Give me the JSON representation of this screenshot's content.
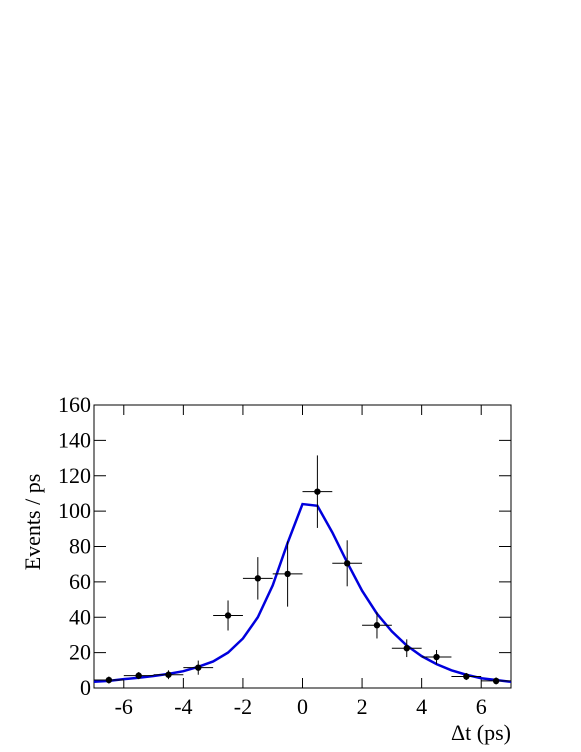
{
  "chart_data": {
    "type": "errorbar",
    "xlabel": "Δt (ps)",
    "ylabel": "Events / ps",
    "xlim": [
      -7,
      7
    ],
    "xticks": [
      -6,
      -4,
      -2,
      0,
      2,
      4,
      6
    ],
    "ylim": [
      0,
      160
    ],
    "yticks": [
      0,
      20,
      40,
      60,
      80,
      100,
      120,
      140,
      160
    ],
    "points": {
      "color": "#000000",
      "x": [
        -6.5,
        -5.5,
        -4.5,
        -3.5,
        -2.5,
        -1.5,
        -0.5,
        0.5,
        1.5,
        2.5,
        3.5,
        4.5,
        5.5,
        6.5
      ],
      "values": [
        4.5,
        7,
        7.5,
        11.5,
        41,
        62,
        64.5,
        111,
        70.5,
        35.5,
        22.5,
        17.5,
        6.5,
        4
      ],
      "errors": [
        2,
        2,
        2.5,
        4,
        8.5,
        12,
        18.5,
        20.5,
        13,
        7.5,
        5,
        4,
        2,
        2
      ],
      "xerrors": [
        0.5,
        0.5,
        0.5,
        0.5,
        0.5,
        0.5,
        0.5,
        0.5,
        0.5,
        0.5,
        0.5,
        0.5,
        0.5,
        0.5
      ]
    },
    "fit": {
      "color": "#0000dd",
      "x": [
        -7,
        -6.5,
        -6,
        -5.5,
        -5,
        -4.5,
        -4,
        -3.5,
        -3,
        -2.5,
        -2,
        -1.5,
        -1,
        -0.5,
        0,
        0.5,
        1,
        1.5,
        2,
        2.5,
        3,
        3.5,
        4,
        4.5,
        5,
        5.5,
        6,
        6.5,
        7
      ],
      "values": [
        3.5,
        4,
        5,
        5.8,
        6.8,
        8,
        9.5,
        12,
        15,
        20,
        28,
        40,
        58,
        82,
        104,
        103,
        88,
        71,
        55,
        42,
        32,
        24,
        18,
        13.5,
        10,
        7.5,
        5.5,
        4.5,
        3.5
      ]
    }
  }
}
